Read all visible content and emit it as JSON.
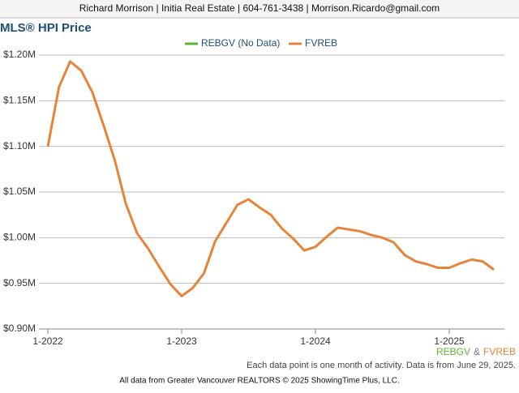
{
  "header": "Richard Morrison | Initia Real Estate | 604-761-3438 | Morrison.Ricardo@gmail.com",
  "chart_data": {
    "type": "line",
    "title": "MLS® HPI Price",
    "x": [
      "1-2022",
      "2-2022",
      "3-2022",
      "4-2022",
      "5-2022",
      "6-2022",
      "7-2022",
      "8-2022",
      "9-2022",
      "10-2022",
      "11-2022",
      "12-2022",
      "1-2023",
      "2-2023",
      "3-2023",
      "4-2023",
      "5-2023",
      "6-2023",
      "7-2023",
      "8-2023",
      "9-2023",
      "10-2023",
      "11-2023",
      "12-2023",
      "1-2024",
      "2-2024",
      "3-2024",
      "4-2024",
      "5-2024",
      "6-2024",
      "7-2024",
      "8-2024",
      "9-2024",
      "10-2024",
      "11-2024",
      "12-2024",
      "1-2025",
      "2-2025",
      "3-2025",
      "4-2025",
      "5-2025"
    ],
    "xticks": [
      "1-2022",
      "1-2023",
      "1-2024",
      "1-2025"
    ],
    "series": [
      {
        "name": "REBGV (No Data)",
        "color": "#5cb531",
        "values": [
          null,
          null,
          null,
          null,
          null,
          null,
          null,
          null,
          null,
          null,
          null,
          null,
          null,
          null,
          null,
          null,
          null,
          null,
          null,
          null,
          null,
          null,
          null,
          null,
          null,
          null,
          null,
          null,
          null,
          null,
          null,
          null,
          null,
          null,
          null,
          null,
          null,
          null,
          null,
          null,
          null
        ]
      },
      {
        "name": "FVREB",
        "color": "#e8843a",
        "values": [
          1100000,
          1165000,
          1193000,
          1183000,
          1159000,
          1123000,
          1085000,
          1037000,
          1005000,
          988000,
          968000,
          949000,
          936000,
          945000,
          961000,
          996000,
          1016000,
          1036000,
          1042000,
          1033000,
          1025000,
          1010000,
          999000,
          986000,
          990000,
          1001000,
          1011000,
          1009000,
          1007000,
          1003000,
          1000000,
          995000,
          981000,
          974000,
          971000,
          967000,
          967000,
          972000,
          976000,
          974000,
          965000
        ]
      }
    ],
    "ylim": [
      900000,
      1200000
    ],
    "yticks": [
      {
        "value": 900000,
        "label": "$0.90M"
      },
      {
        "value": 950000,
        "label": "$0.95M"
      },
      {
        "value": 1000000,
        "label": "$1.00M"
      },
      {
        "value": 1050000,
        "label": "$1.05M"
      },
      {
        "value": 1100000,
        "label": "$1.10M"
      },
      {
        "value": 1150000,
        "label": "$1.15M"
      },
      {
        "value": 1200000,
        "label": "$1.20M"
      }
    ],
    "grid": true,
    "footer_legend": [
      "REBGV",
      "&",
      "FVREB"
    ],
    "note": "Each data point is one month of activity. Data is from June 29, 2025."
  },
  "footer": "All data from Greater Vancouver REALTORS © 2025 ShowingTime Plus, LLC."
}
